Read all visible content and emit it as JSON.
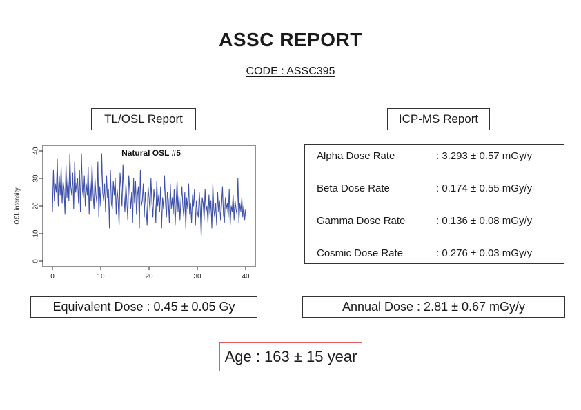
{
  "report": {
    "title": "ASSC REPORT",
    "code": "CODE : ASSC395"
  },
  "sections": {
    "tl_osl_label": "TL/OSL Report",
    "icp_ms_label": "ICP-MS Report"
  },
  "icp_rows": [
    {
      "name": "Alpha Dose Rate",
      "value": ": 3.293 ± 0.57 mGy/y"
    },
    {
      "name": "Beta Dose Rate",
      "value": ": 0.174 ± 0.55 mGy/y"
    },
    {
      "name": "Gamma Dose Rate",
      "value": ": 0.136 ± 0.08 mGy/y"
    },
    {
      "name": "Cosmic Dose Rate",
      "value": ": 0.276 ± 0.03 mGy/y"
    }
  ],
  "results": {
    "equivalent_dose": "Equivalent Dose : 0.45 ± 0.05 Gy",
    "annual_dose": "Annual Dose : 2.81 ± 0.67 mGy/y",
    "age": "Age : 163 ± 15 year"
  },
  "colors": {
    "line": "#3f51a8",
    "age_border": "#e05a5a"
  },
  "chart_data": {
    "type": "line",
    "title": "Natural OSL #5",
    "xlabel": "",
    "ylabel": "OSL intensity",
    "xlim": [
      0,
      40
    ],
    "ylim": [
      0,
      40
    ],
    "xticks": [
      0,
      10,
      20,
      30,
      40
    ],
    "yticks": [
      0,
      10,
      20,
      30,
      40
    ],
    "series": [
      {
        "x": [
          0,
          0.2,
          0.4,
          0.6,
          0.8,
          1,
          1.2,
          1.4,
          1.6,
          1.8,
          2,
          2.2,
          2.4,
          2.6,
          2.8,
          3,
          3.2,
          3.4,
          3.6,
          3.8,
          4,
          4.2,
          4.4,
          4.6,
          4.8,
          5,
          5.2,
          5.4,
          5.6,
          5.8,
          6,
          6.2,
          6.4,
          6.6,
          6.8,
          7,
          7.2,
          7.4,
          7.6,
          7.8,
          8,
          8.2,
          8.4,
          8.6,
          8.8,
          9,
          9.2,
          9.4,
          9.6,
          9.8,
          10,
          10.2,
          10.4,
          10.6,
          10.8,
          11,
          11.2,
          11.4,
          11.6,
          11.8,
          12,
          12.2,
          12.4,
          12.6,
          12.8,
          13,
          13.2,
          13.4,
          13.6,
          13.8,
          14,
          14.2,
          14.4,
          14.6,
          14.8,
          15,
          15.2,
          15.4,
          15.6,
          15.8,
          16,
          16.2,
          16.4,
          16.6,
          16.8,
          17,
          17.2,
          17.4,
          17.6,
          17.8,
          18,
          18.2,
          18.4,
          18.6,
          18.8,
          19,
          19.2,
          19.4,
          19.6,
          19.8,
          20,
          20.2,
          20.4,
          20.6,
          20.8,
          21,
          21.2,
          21.4,
          21.6,
          21.8,
          22,
          22.2,
          22.4,
          22.6,
          22.8,
          23,
          23.2,
          23.4,
          23.6,
          23.8,
          24,
          24.2,
          24.4,
          24.6,
          24.8,
          25,
          25.2,
          25.4,
          25.6,
          25.8,
          26,
          26.2,
          26.4,
          26.6,
          26.8,
          27,
          27.2,
          27.4,
          27.6,
          27.8,
          28,
          28.2,
          28.4,
          28.6,
          28.8,
          29,
          29.2,
          29.4,
          29.6,
          29.8,
          30,
          30.2,
          30.4,
          30.6,
          30.8,
          31,
          31.2,
          31.4,
          31.6,
          31.8,
          32,
          32.2,
          32.4,
          32.6,
          32.8,
          33,
          33.2,
          33.4,
          33.6,
          33.8,
          34,
          34.2,
          34.4,
          34.6,
          34.8,
          35,
          35.2,
          35.4,
          35.6,
          35.8,
          36,
          36.2,
          36.4,
          36.6,
          36.8,
          37,
          37.2,
          37.4,
          37.6,
          37.8,
          38,
          38.2,
          38.4,
          38.6,
          38.8,
          39,
          39.2,
          39.4,
          39.6,
          39.8,
          40
        ],
        "y": [
          18,
          33,
          22,
          28,
          25,
          37,
          20,
          31,
          24,
          34,
          21,
          29,
          26,
          17,
          35,
          23,
          30,
          22,
          39,
          27,
          24,
          32,
          19,
          36,
          25,
          28,
          30,
          21,
          33,
          18,
          39,
          26,
          23,
          31,
          20,
          28,
          24,
          34,
          17,
          29,
          22,
          35,
          25,
          19,
          30,
          24,
          21,
          36,
          16,
          27,
          20,
          39,
          25,
          22,
          28,
          18,
          31,
          23,
          26,
          12,
          33,
          21,
          19,
          29,
          24,
          30,
          17,
          26,
          22,
          13,
          32,
          27,
          20,
          35,
          24,
          18,
          28,
          22,
          15,
          31,
          26,
          19,
          25,
          14,
          30,
          21,
          29,
          17,
          24,
          27,
          12,
          33,
          20,
          22,
          28,
          16,
          25,
          19,
          13,
          27,
          23,
          18,
          30,
          21,
          16,
          26,
          22,
          14,
          29,
          20,
          24,
          18,
          27,
          12,
          23,
          19,
          31,
          21,
          16,
          25,
          22,
          14,
          28,
          19,
          23,
          17,
          26,
          13,
          21,
          29,
          18,
          24,
          15,
          22,
          27,
          20,
          16,
          25,
          12,
          23,
          19,
          28,
          17,
          21,
          14,
          24,
          20,
          26,
          13,
          22,
          18,
          16,
          25,
          19,
          9,
          23,
          21,
          15,
          26,
          18,
          20,
          14,
          24,
          17,
          22,
          12,
          28,
          19,
          16,
          21,
          13,
          25,
          18,
          22,
          15,
          20,
          27,
          17,
          14,
          23,
          19,
          21,
          16,
          26,
          13,
          20,
          18,
          24,
          15,
          22,
          19,
          17,
          30,
          14,
          21,
          18,
          23,
          16,
          20,
          15,
          19
        ]
      }
    ]
  }
}
